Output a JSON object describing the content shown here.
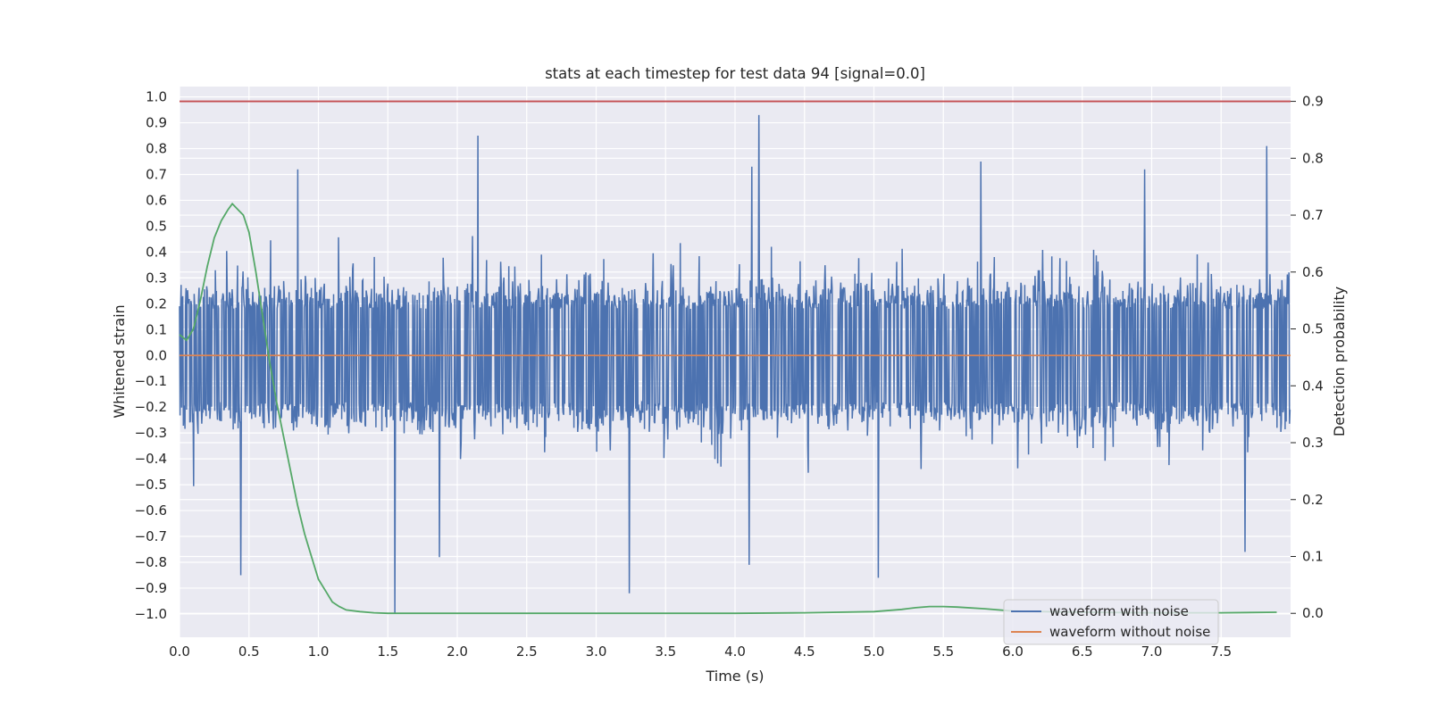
{
  "chart_data": {
    "type": "line",
    "title": "stats at each timestep for test data 94 [signal=0.0]",
    "xlabel": "Time (s)",
    "ylabel": "Whitened strain",
    "y2label": "Detection probability",
    "xlim": [
      0.0,
      8.0
    ],
    "ylim": [
      -1.09,
      1.04
    ],
    "y2lim": [
      -0.042,
      0.926
    ],
    "x_ticks": [
      "0.0",
      "0.5",
      "1.0",
      "1.5",
      "2.0",
      "2.5",
      "3.0",
      "3.5",
      "4.0",
      "4.5",
      "5.0",
      "5.5",
      "6.0",
      "6.5",
      "7.0",
      "7.5"
    ],
    "y_ticks": [
      "−1.0",
      "−0.9",
      "−0.8",
      "−0.7",
      "−0.6",
      "−0.5",
      "−0.4",
      "−0.3",
      "−0.2",
      "−0.1",
      "0.0",
      "0.1",
      "0.2",
      "0.3",
      "0.4",
      "0.5",
      "0.6",
      "0.7",
      "0.8",
      "0.9",
      "1.0"
    ],
    "y2_ticks": [
      "0.0",
      "0.1",
      "0.2",
      "0.3",
      "0.4",
      "0.5",
      "0.6",
      "0.7",
      "0.8",
      "0.9"
    ],
    "grid": true,
    "legend_position": "lower-right",
    "series": [
      {
        "name": "waveform with noise",
        "color": "#4c72b0",
        "axis": "left",
        "kind": "noise",
        "sample_count": 2048,
        "range": [
          -1.0,
          0.93
        ],
        "peaks": [
          {
            "x": 2.15,
            "y": 0.85
          },
          {
            "x": 4.17,
            "y": 0.93
          },
          {
            "x": 7.83,
            "y": 0.81
          },
          {
            "x": 5.77,
            "y": 0.75
          },
          {
            "x": 4.12,
            "y": 0.73
          },
          {
            "x": 6.95,
            "y": 0.72
          },
          {
            "x": 0.85,
            "y": 0.72
          },
          {
            "x": 1.55,
            "y": -1.0
          },
          {
            "x": 3.24,
            "y": -0.92
          },
          {
            "x": 5.03,
            "y": -0.86
          },
          {
            "x": 0.44,
            "y": -0.85
          },
          {
            "x": 4.1,
            "y": -0.81
          },
          {
            "x": 1.87,
            "y": -0.78
          },
          {
            "x": 7.67,
            "y": -0.76
          }
        ]
      },
      {
        "name": "waveform without noise",
        "color": "#dd8452",
        "axis": "left",
        "x": [
          0.0,
          8.0
        ],
        "y": [
          0.0,
          0.0
        ]
      },
      {
        "name": "detection probability",
        "color": "#55a868",
        "axis": "right",
        "x": [
          0.0,
          0.05,
          0.1,
          0.15,
          0.2,
          0.25,
          0.3,
          0.35,
          0.38,
          0.42,
          0.46,
          0.5,
          0.55,
          0.6,
          0.65,
          0.7,
          0.75,
          0.8,
          0.85,
          0.9,
          0.95,
          1.0,
          1.05,
          1.1,
          1.15,
          1.2,
          1.3,
          1.4,
          1.5,
          1.6,
          2.0,
          3.0,
          4.0,
          4.5,
          5.0,
          5.2,
          5.3,
          5.4,
          5.5,
          5.6,
          5.8,
          6.0,
          6.5,
          7.0,
          7.5,
          7.9
        ],
        "y": [
          0.49,
          0.48,
          0.5,
          0.55,
          0.61,
          0.66,
          0.69,
          0.71,
          0.72,
          0.71,
          0.7,
          0.67,
          0.6,
          0.52,
          0.44,
          0.37,
          0.31,
          0.25,
          0.19,
          0.14,
          0.1,
          0.06,
          0.04,
          0.02,
          0.012,
          0.006,
          0.003,
          0.001,
          0.0,
          0.0,
          0.0,
          0.0,
          0.0,
          0.001,
          0.003,
          0.007,
          0.01,
          0.012,
          0.012,
          0.011,
          0.008,
          0.004,
          0.002,
          0.001,
          0.001,
          0.002
        ]
      },
      {
        "name": "threshold",
        "color": "#c44e52",
        "axis": "right",
        "x": [
          0.0,
          8.0
        ],
        "y": [
          0.9,
          0.9
        ]
      }
    ],
    "legend": [
      "waveform with noise",
      "waveform without noise"
    ]
  }
}
